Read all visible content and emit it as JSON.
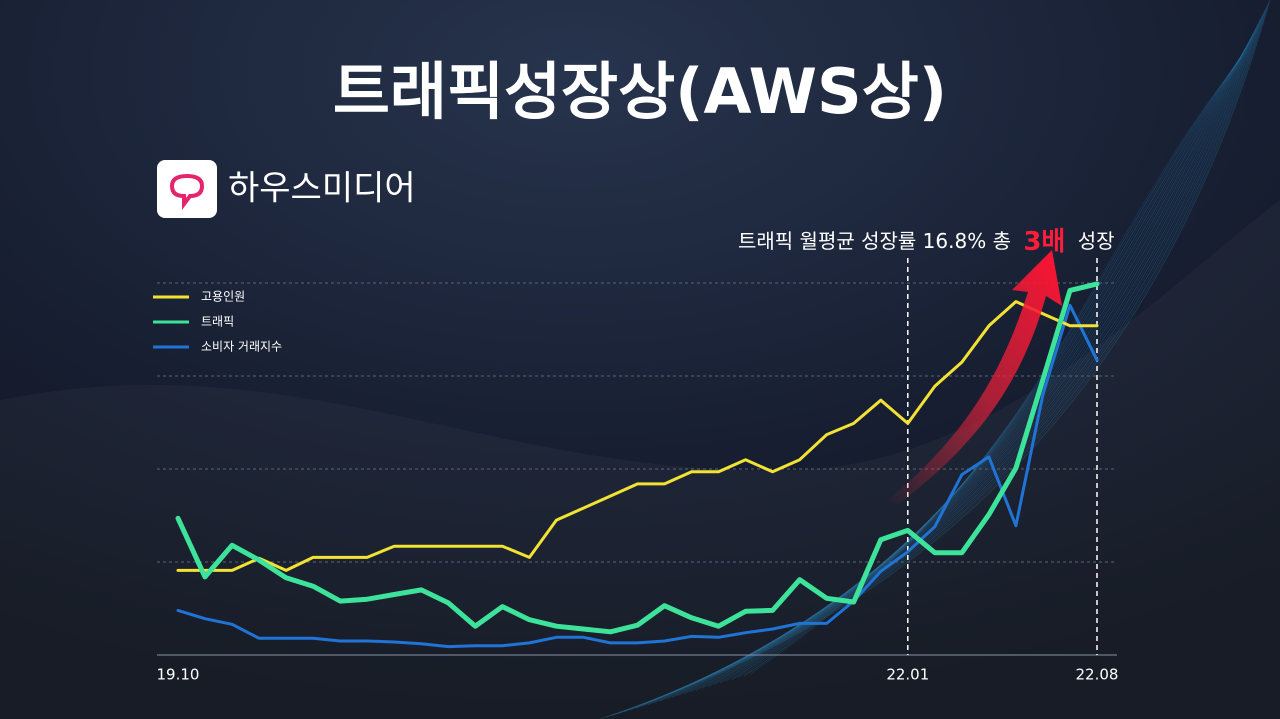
{
  "brand": "하우스미디어",
  "chart_data": {
    "type": "line",
    "title": "트래픽성장상(AWS상)",
    "annotation": [
      "트래픽 월평균 성장률 16.8% 총",
      "3배",
      "성장"
    ],
    "categories": [
      "19.10",
      null,
      null,
      null,
      null,
      null,
      null,
      null,
      null,
      null,
      null,
      null,
      null,
      null,
      null,
      null,
      null,
      null,
      null,
      null,
      null,
      null,
      null,
      null,
      null,
      null,
      null,
      "22.01",
      null,
      null,
      null,
      null,
      null,
      null,
      "22.08"
    ],
    "ylim": [
      0,
      4
    ],
    "yticks": [
      0,
      1,
      2,
      3,
      4
    ],
    "grid": true,
    "legend": "top-left",
    "series": [
      {
        "name": "고용인원",
        "color": "#f2e233",
        "values": [
          0.91,
          0.91,
          0.91,
          1.04,
          0.91,
          1.05,
          1.05,
          1.05,
          1.17,
          1.17,
          1.17,
          1.17,
          1.17,
          1.05,
          1.45,
          1.58,
          1.71,
          1.84,
          1.84,
          1.97,
          1.97,
          2.1,
          1.97,
          2.1,
          2.37,
          2.49,
          2.74,
          2.49,
          2.89,
          3.15,
          3.54,
          3.8,
          3.67,
          3.54,
          3.54
        ]
      },
      {
        "name": "트래픽",
        "color": "#3de39a",
        "values": [
          1.47,
          0.84,
          1.18,
          1.02,
          0.83,
          0.74,
          0.58,
          0.6,
          0.65,
          0.7,
          0.56,
          0.31,
          0.52,
          0.38,
          0.31,
          0.28,
          0.25,
          0.32,
          0.53,
          0.4,
          0.31,
          0.47,
          0.48,
          0.81,
          0.61,
          0.57,
          1.24,
          1.34,
          1.1,
          1.1,
          1.51,
          2.01,
          2.96,
          3.92,
          3.99
        ]
      },
      {
        "name": "소비자 거래지수",
        "color": "#1f74d6",
        "values": [
          0.48,
          0.39,
          0.33,
          0.18,
          0.18,
          0.18,
          0.15,
          0.15,
          0.14,
          0.12,
          0.09,
          0.1,
          0.1,
          0.13,
          0.19,
          0.19,
          0.13,
          0.13,
          0.15,
          0.2,
          0.19,
          0.24,
          0.28,
          0.34,
          0.34,
          0.58,
          0.9,
          1.11,
          1.38,
          1.94,
          2.13,
          1.39,
          2.8,
          3.76,
          3.17
        ]
      }
    ]
  }
}
